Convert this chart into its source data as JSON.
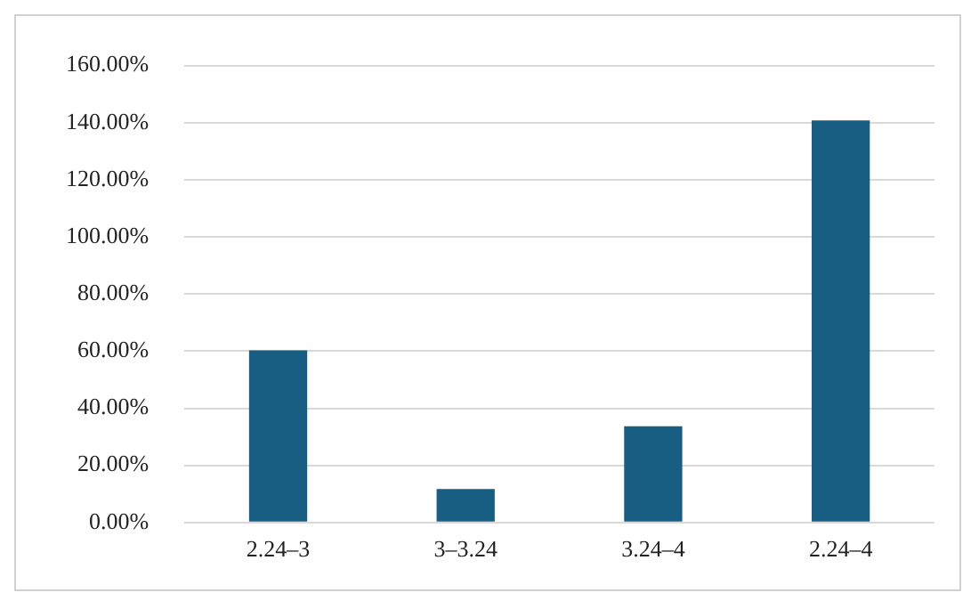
{
  "chart_data": {
    "type": "bar",
    "categories": [
      "2.24–3",
      "3–3.24",
      "3.24–4",
      "2.24–4"
    ],
    "values": [
      60.3,
      11.7,
      33.7,
      140.8
    ],
    "color": "#175e82",
    "ylim": [
      0,
      160
    ],
    "yticks": [
      {
        "value": 0,
        "label": "0.00%"
      },
      {
        "value": 20,
        "label": "20.00%"
      },
      {
        "value": 40,
        "label": "40.00%"
      },
      {
        "value": 60,
        "label": "60.00%"
      },
      {
        "value": 80,
        "label": "80.00%"
      },
      {
        "value": 100,
        "label": "100.00%"
      },
      {
        "value": 120,
        "label": "120.00%"
      },
      {
        "value": 140,
        "label": "140.00%"
      },
      {
        "value": 160,
        "label": "160.00%"
      }
    ],
    "grid": "y"
  }
}
